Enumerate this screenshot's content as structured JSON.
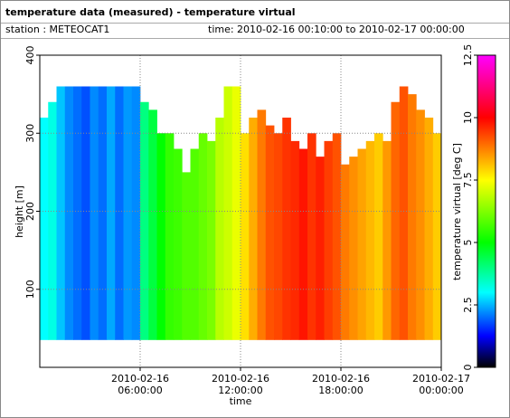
{
  "header": {
    "title": "temperature data (measured) - temperature virtual",
    "station": "station : METEOCAT1",
    "time": "time: 2010-02-16 00:10:00 to 2010-02-17 00:00:00"
  },
  "chart_data": {
    "type": "heatmap",
    "x_label": "time",
    "y_label": "height [m]",
    "z_label": "temperature virtual [deg C]",
    "x": [
      "2010-02-16 00:00:00",
      "2010-02-16 00:30:00",
      "2010-02-16 01:00:00",
      "2010-02-16 01:30:00",
      "2010-02-16 02:00:00",
      "2010-02-16 02:30:00",
      "2010-02-16 03:00:00",
      "2010-02-16 03:30:00",
      "2010-02-16 04:00:00",
      "2010-02-16 04:30:00",
      "2010-02-16 05:00:00",
      "2010-02-16 05:30:00",
      "2010-02-16 06:00:00",
      "2010-02-16 06:30:00",
      "2010-02-16 07:00:00",
      "2010-02-16 07:30:00",
      "2010-02-16 08:00:00",
      "2010-02-16 08:30:00",
      "2010-02-16 09:00:00",
      "2010-02-16 09:30:00",
      "2010-02-16 10:00:00",
      "2010-02-16 10:30:00",
      "2010-02-16 11:00:00",
      "2010-02-16 11:30:00",
      "2010-02-16 12:00:00",
      "2010-02-16 12:30:00",
      "2010-02-16 13:00:00",
      "2010-02-16 13:30:00",
      "2010-02-16 14:00:00",
      "2010-02-16 14:30:00",
      "2010-02-16 15:00:00",
      "2010-02-16 15:30:00",
      "2010-02-16 16:00:00",
      "2010-02-16 16:30:00",
      "2010-02-16 17:00:00",
      "2010-02-16 17:30:00",
      "2010-02-16 18:00:00",
      "2010-02-16 18:30:00",
      "2010-02-16 19:00:00",
      "2010-02-16 19:30:00",
      "2010-02-16 20:00:00",
      "2010-02-16 20:30:00",
      "2010-02-16 21:00:00",
      "2010-02-16 21:30:00",
      "2010-02-16 22:00:00",
      "2010-02-16 22:30:00",
      "2010-02-16 23:00:00",
      "2010-02-16 23:30:00"
    ],
    "base": 35,
    "tops": [
      320,
      340,
      360,
      360,
      360,
      360,
      360,
      360,
      360,
      360,
      360,
      360,
      340,
      330,
      300,
      300,
      280,
      250,
      280,
      300,
      290,
      320,
      360,
      360,
      300,
      320,
      330,
      310,
      300,
      320,
      290,
      280,
      300,
      270,
      290,
      300,
      260,
      270,
      280,
      290,
      300,
      290,
      340,
      360,
      350,
      330,
      320,
      300
    ],
    "values": [
      3.0,
      3.2,
      2.6,
      2.2,
      2.0,
      1.8,
      2.2,
      2.0,
      2.4,
      2.0,
      2.3,
      2.2,
      4.0,
      4.5,
      5.0,
      5.5,
      5.6,
      5.8,
      5.8,
      6.0,
      6.2,
      6.8,
      7.0,
      7.3,
      7.8,
      8.3,
      8.8,
      9.2,
      9.3,
      9.5,
      9.6,
      9.8,
      9.5,
      9.7,
      9.4,
      9.2,
      8.8,
      8.6,
      8.4,
      8.2,
      8.0,
      8.5,
      9.0,
      9.2,
      8.8,
      8.6,
      8.3,
      8.0
    ],
    "xlim": [
      "2010-02-16 00:00:00",
      "2010-02-17 00:00:00"
    ],
    "xticks": [
      {
        "value": "2010-02-16 06:00:00",
        "label": "2010-02-16\n06:00:00"
      },
      {
        "value": "2010-02-16 12:00:00",
        "label": "2010-02-16\n12:00:00"
      },
      {
        "value": "2010-02-16 18:00:00",
        "label": "2010-02-16\n18:00:00"
      },
      {
        "value": "2010-02-17 00:00:00",
        "label": "2010-02-17\n00:00:00"
      }
    ],
    "ylim": [
      0,
      400
    ],
    "yticks": [
      100,
      200,
      300,
      400
    ],
    "zlim": [
      0,
      12.5
    ],
    "zticks": [
      0,
      2.5,
      5,
      7.5,
      10,
      12.5
    ],
    "colormap": [
      {
        "value": 0,
        "color": "#000000"
      },
      {
        "value": 1.25,
        "color": "#0000ff"
      },
      {
        "value": 3,
        "color": "#00ffff"
      },
      {
        "value": 5,
        "color": "#00ff00"
      },
      {
        "value": 7.5,
        "color": "#ffff00"
      },
      {
        "value": 10,
        "color": "#ff0000"
      },
      {
        "value": 12.5,
        "color": "#ff00ff"
      }
    ],
    "grid": true
  }
}
